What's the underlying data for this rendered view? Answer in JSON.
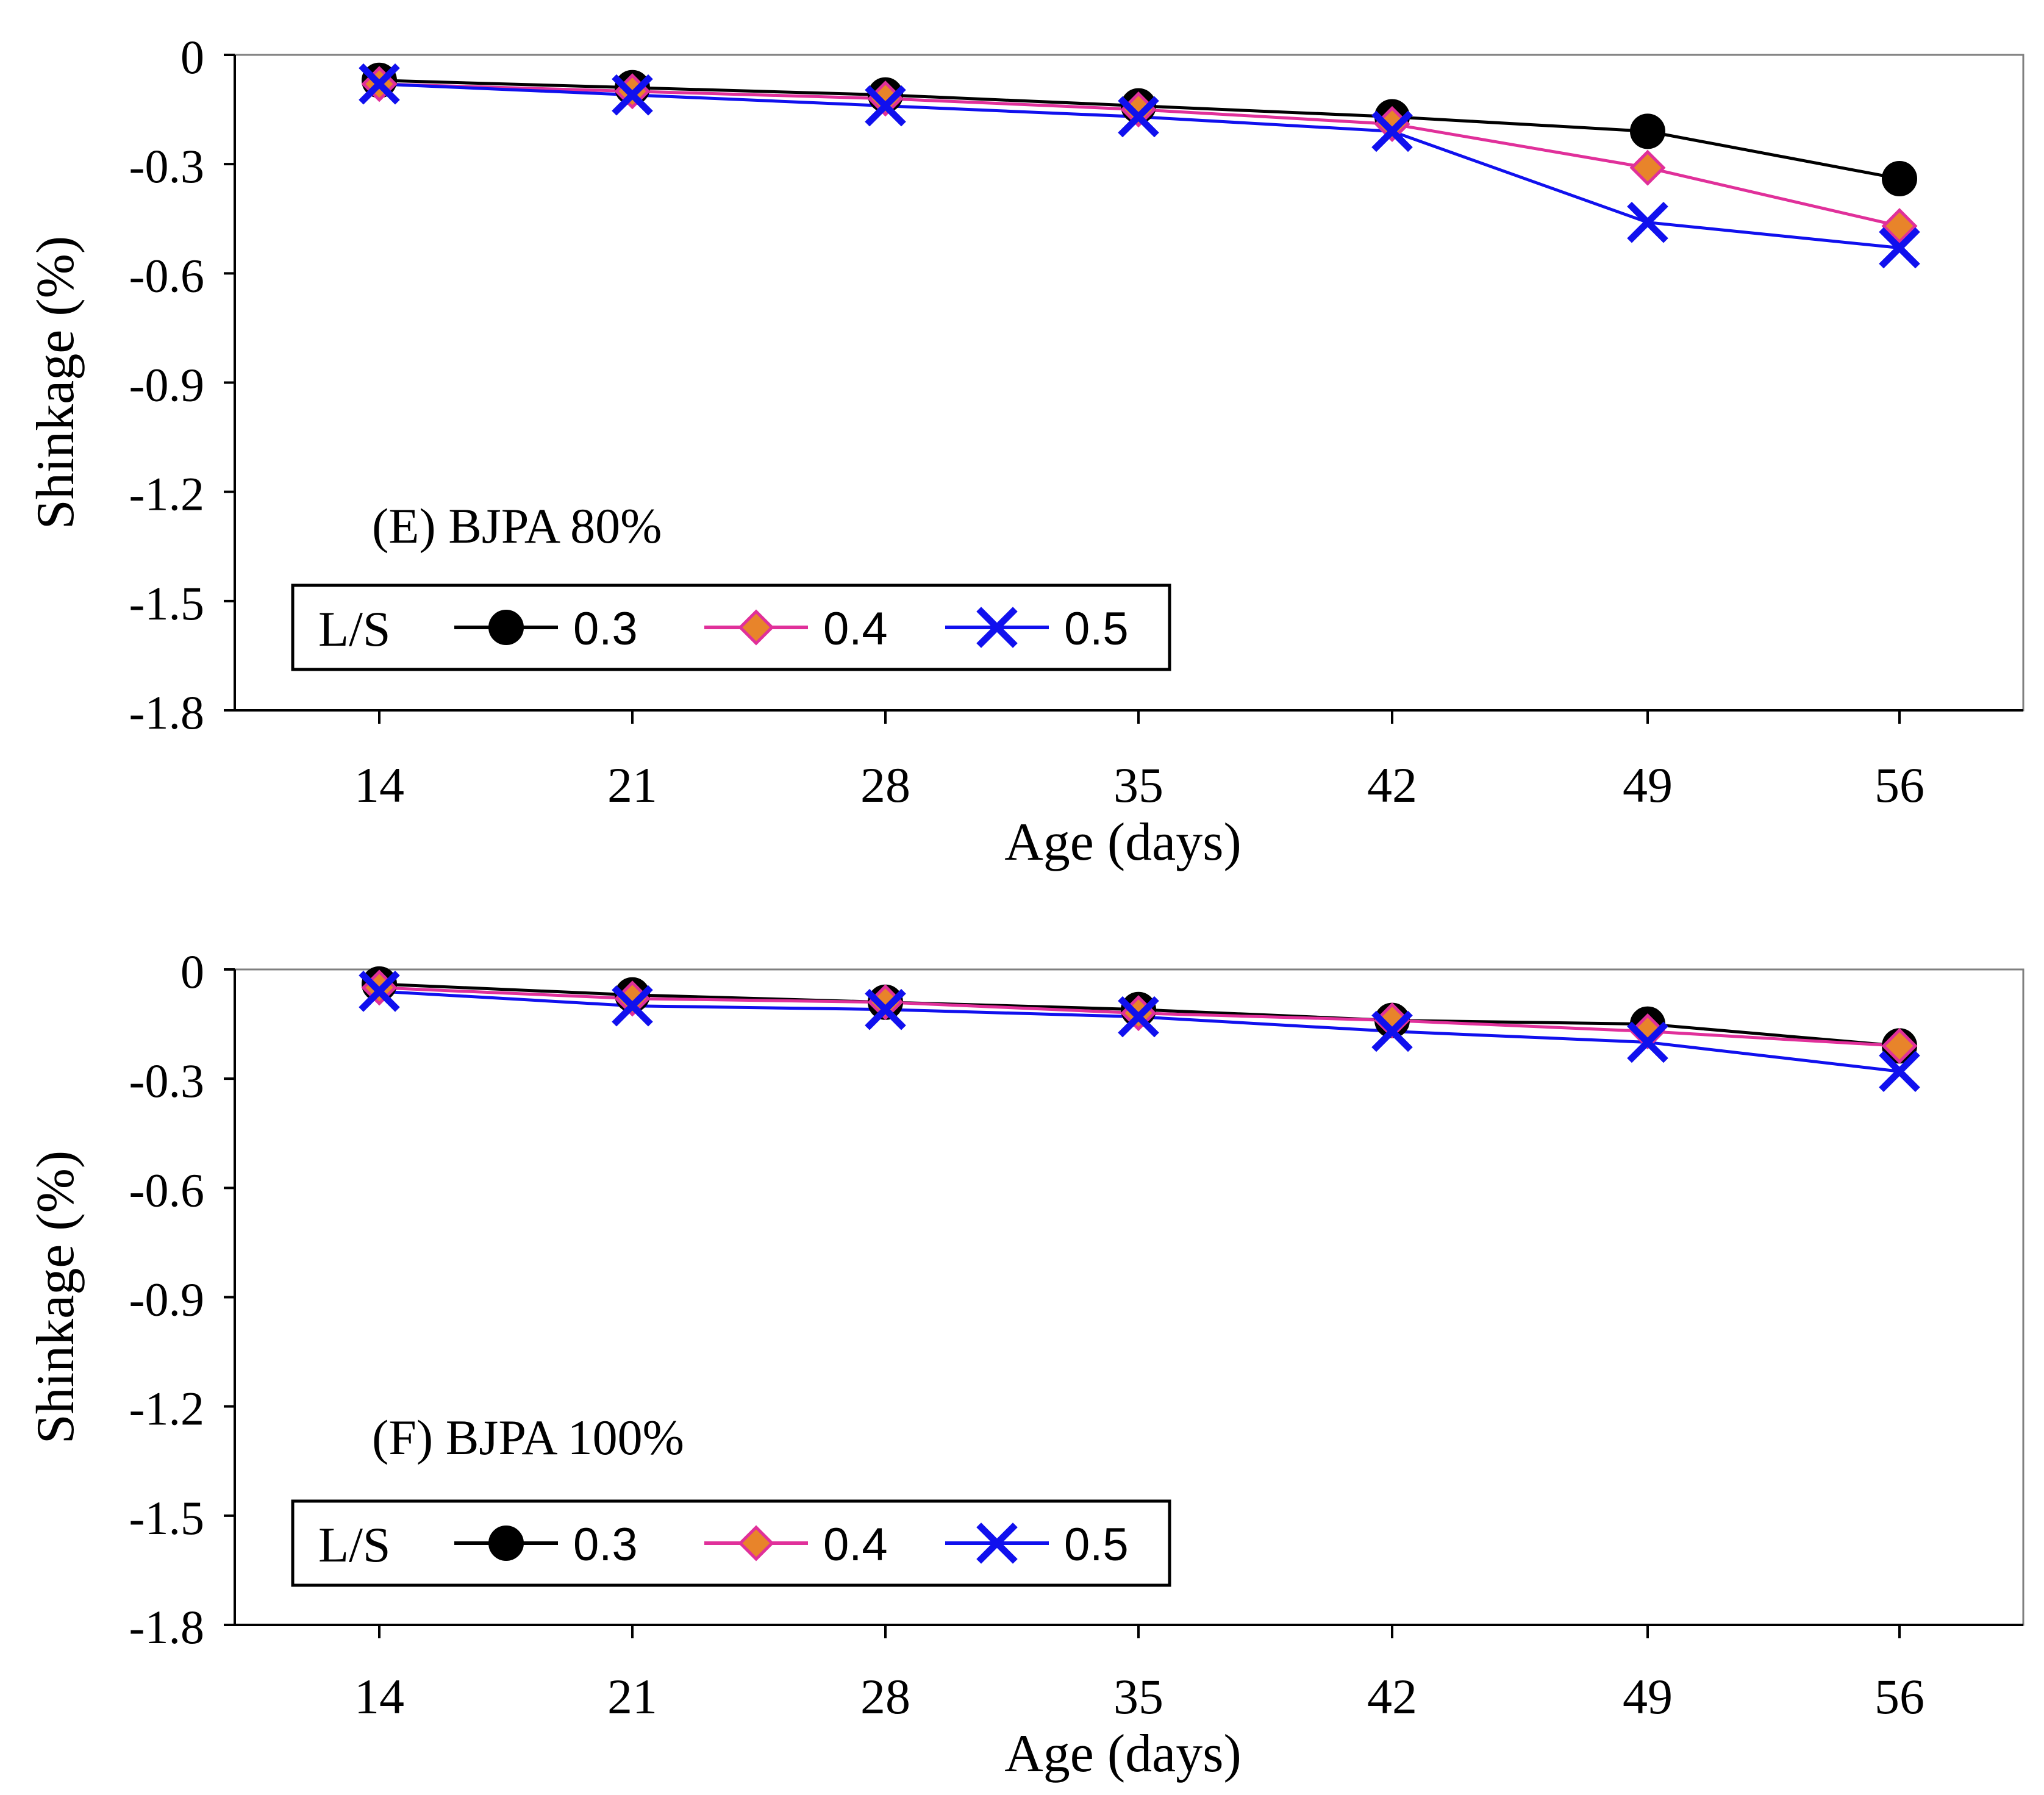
{
  "series_style": {
    "0.3": {
      "color": "#000000",
      "fill": "#000000",
      "marker": "circle"
    },
    "0.4": {
      "color": "#e0309a",
      "fill": "#e8842a",
      "marker": "diamond"
    },
    "0.5": {
      "color": "#1010ee",
      "fill": "#1010ee",
      "marker": "cross"
    }
  },
  "chart_data": [
    {
      "type": "line",
      "title": "(E) BJPA 80%",
      "xlabel": "Age (days)",
      "ylabel": "Shinkage (%)",
      "categories": [
        "14",
        "21",
        "28",
        "35",
        "42",
        "49",
        "56"
      ],
      "y_ticks": [
        "0",
        "-0.3",
        "-0.6",
        "-0.9",
        "-1.2",
        "-1.5",
        "-1.8"
      ],
      "ylim": [
        -1.8,
        0
      ],
      "legend": {
        "title": "L/S",
        "position": "bottom-left"
      },
      "series": [
        {
          "name": "0.3",
          "values": [
            -0.07,
            -0.09,
            -0.11,
            -0.14,
            -0.17,
            -0.21,
            -0.34
          ]
        },
        {
          "name": "0.4",
          "values": [
            -0.08,
            -0.1,
            -0.12,
            -0.15,
            -0.19,
            -0.31,
            -0.47
          ]
        },
        {
          "name": "0.5",
          "values": [
            -0.08,
            -0.11,
            -0.14,
            -0.17,
            -0.21,
            -0.46,
            -0.53
          ]
        }
      ]
    },
    {
      "type": "line",
      "title": "(F) BJPA 100%",
      "xlabel": "Age (days)",
      "ylabel": "Shinkage (%)",
      "categories": [
        "14",
        "21",
        "28",
        "35",
        "42",
        "49",
        "56"
      ],
      "y_ticks": [
        "0",
        "-0.3",
        "-0.6",
        "-0.9",
        "-1.2",
        "-1.5",
        "-1.8"
      ],
      "ylim": [
        -1.8,
        0
      ],
      "legend": {
        "title": "L/S",
        "position": "bottom-left"
      },
      "series": [
        {
          "name": "0.3",
          "values": [
            -0.04,
            -0.07,
            -0.09,
            -0.11,
            -0.14,
            -0.15,
            -0.21
          ]
        },
        {
          "name": "0.4",
          "values": [
            -0.05,
            -0.08,
            -0.09,
            -0.12,
            -0.14,
            -0.17,
            -0.21
          ]
        },
        {
          "name": "0.5",
          "values": [
            -0.06,
            -0.1,
            -0.11,
            -0.13,
            -0.17,
            -0.2,
            -0.28
          ]
        }
      ]
    }
  ]
}
